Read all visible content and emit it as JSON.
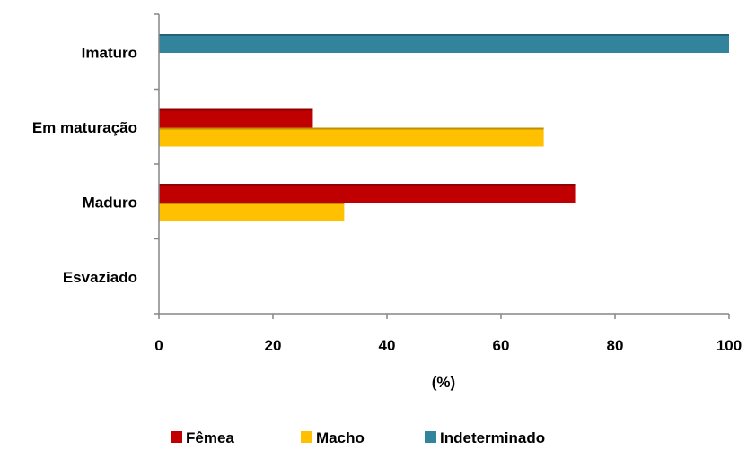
{
  "chart_data": {
    "type": "bar",
    "orientation": "horizontal",
    "categories": [
      "Imaturo",
      "Em maturação",
      "Maduro",
      "Esvaziado"
    ],
    "series": [
      {
        "name": "Fêmea",
        "color": "#C00000",
        "values": [
          0,
          27,
          73,
          0
        ]
      },
      {
        "name": "Macho",
        "color": "#FFC000",
        "values": [
          0,
          67.5,
          32.5,
          0
        ]
      },
      {
        "name": "Indeterminado",
        "color": "#31849B",
        "values": [
          100,
          0,
          0,
          0
        ]
      }
    ],
    "xlabel": "(%)",
    "xlim": [
      0,
      100
    ],
    "xticks": [
      "0",
      "20",
      "40",
      "60",
      "80",
      "100"
    ],
    "grid": false,
    "legend_position": "bottom"
  }
}
